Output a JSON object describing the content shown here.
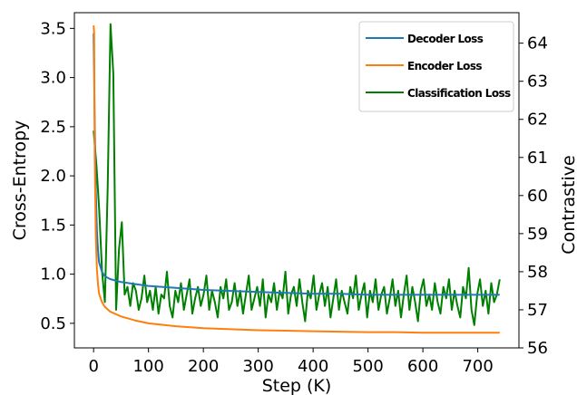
{
  "chart_data": {
    "type": "line",
    "xlabel": "Step (K)",
    "ylabel_left": "Cross-Entropy",
    "ylabel_right": "Contrastive",
    "xlim": [
      -35,
      775
    ],
    "ylim_left": [
      0.25,
      3.66
    ],
    "ylim_right": [
      56.0,
      64.8
    ],
    "xticks": [
      0,
      100,
      200,
      300,
      400,
      500,
      600,
      700
    ],
    "yticks_left": [
      0.5,
      1.0,
      1.5,
      2.0,
      2.5,
      3.0,
      3.5
    ],
    "yticks_right": [
      56,
      57,
      58,
      59,
      60,
      61,
      62,
      63,
      64
    ],
    "grid": false,
    "legend": "top-right",
    "series": [
      {
        "name": "Decoder Loss",
        "axis": "left",
        "color": "#1f77b4",
        "x": [
          0,
          2,
          4,
          6,
          8,
          10,
          15,
          20,
          30,
          50,
          75,
          100,
          150,
          200,
          250,
          300,
          350,
          400,
          450,
          500,
          550,
          600,
          650,
          700,
          740
        ],
        "y": [
          3.45,
          2.55,
          1.85,
          1.45,
          1.25,
          1.12,
          1.03,
          0.98,
          0.95,
          0.92,
          0.9,
          0.88,
          0.86,
          0.84,
          0.83,
          0.82,
          0.81,
          0.8,
          0.8,
          0.79,
          0.79,
          0.79,
          0.79,
          0.79,
          0.79
        ]
      },
      {
        "name": "Encoder Loss",
        "axis": "left",
        "color": "#ff7f0e",
        "x": [
          0,
          1,
          2,
          4,
          6,
          8,
          10,
          15,
          20,
          30,
          50,
          75,
          100,
          150,
          200,
          250,
          300,
          350,
          400,
          450,
          500,
          550,
          600,
          650,
          700,
          740
        ],
        "y": [
          3.53,
          3.45,
          2.2,
          1.4,
          1.05,
          0.9,
          0.8,
          0.72,
          0.67,
          0.62,
          0.57,
          0.53,
          0.5,
          0.47,
          0.45,
          0.44,
          0.43,
          0.425,
          0.42,
          0.415,
          0.41,
          0.41,
          0.405,
          0.405,
          0.405,
          0.405
        ]
      },
      {
        "name": "Classification Loss",
        "axis": "right",
        "color": "#008000",
        "x_start": 0,
        "x_end": 740,
        "y": [
          61.7,
          60.8,
          59.6,
          58.0,
          57.2,
          60.2,
          64.5,
          63.2,
          57.0,
          58.6,
          59.3,
          57.4,
          57.6,
          57.1,
          57.7,
          57.5,
          57.0,
          57.3,
          57.9,
          57.2,
          57.5,
          57.0,
          57.6,
          56.9,
          57.4,
          57.3,
          58.0,
          57.1,
          56.8,
          57.5,
          57.2,
          57.7,
          57.0,
          57.4,
          57.8,
          56.9,
          57.3,
          57.6,
          57.1,
          57.4,
          57.9,
          57.0,
          57.5,
          57.2,
          56.8,
          57.6,
          57.3,
          57.8,
          57.0,
          57.2,
          57.7,
          57.1,
          57.5,
          56.9,
          57.4,
          57.9,
          57.0,
          57.3,
          57.6,
          57.1,
          57.8,
          56.8,
          57.4,
          57.2,
          57.7,
          57.0,
          57.5,
          57.3,
          58.0,
          56.9,
          57.4,
          57.6,
          57.1,
          57.8,
          57.2,
          56.7,
          57.5,
          57.3,
          57.9,
          57.0,
          57.4,
          57.7,
          57.1,
          57.6,
          56.8,
          57.3,
          57.8,
          57.0,
          57.5,
          57.2,
          56.9,
          57.6,
          57.3,
          57.9,
          57.0,
          57.4,
          57.7,
          56.8,
          57.5,
          57.2,
          57.8,
          57.0,
          57.4,
          57.6,
          56.9,
          57.3,
          57.8,
          57.1,
          57.5,
          56.8,
          57.4,
          57.9,
          57.0,
          57.6,
          57.2,
          56.7,
          57.5,
          57.8,
          57.1,
          57.4,
          57.0,
          57.7,
          57.2,
          56.9,
          57.6,
          57.3,
          57.8,
          57.0,
          57.5,
          57.1,
          56.8,
          57.6,
          57.3,
          58.1,
          57.0,
          56.6,
          57.4,
          57.8,
          57.1,
          57.5,
          56.9,
          57.7,
          57.2,
          57.4,
          57.8
        ]
      }
    ]
  }
}
